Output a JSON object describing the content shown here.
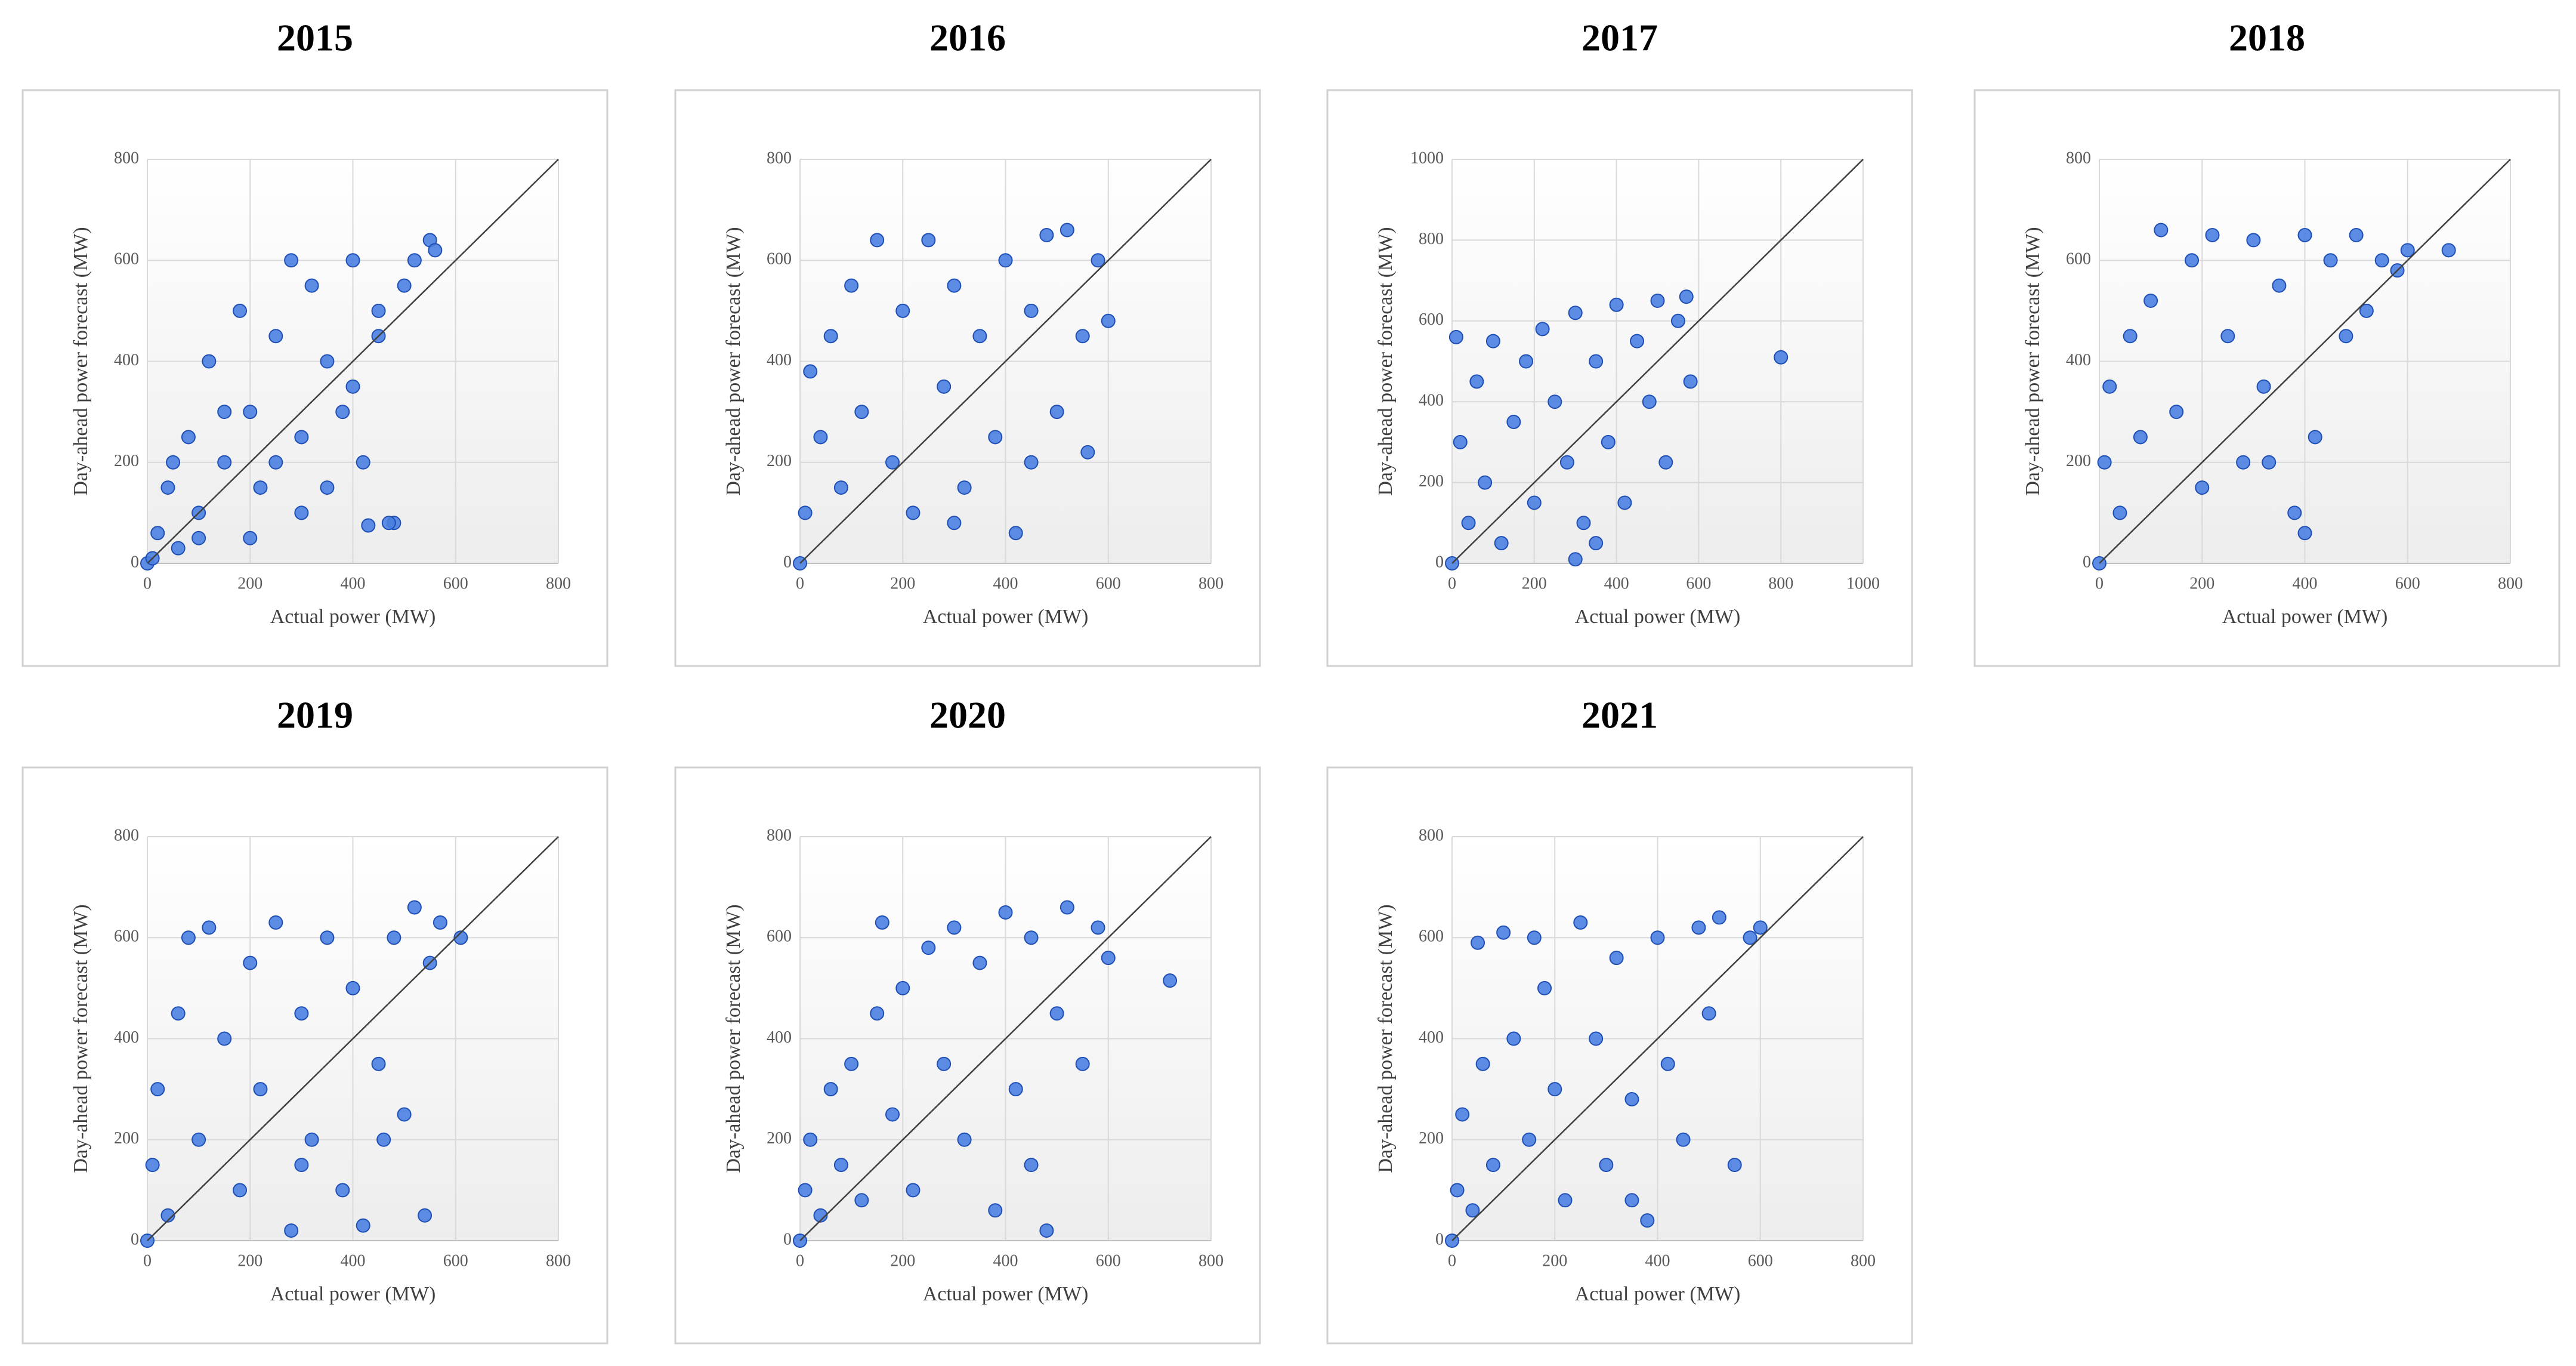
{
  "chart_data": [
    {
      "type": "scatter",
      "title": "2015",
      "x_label": "Actual power (MW)",
      "y_label": "Day-ahead power forecast (MW)",
      "color": "#4a7fe0",
      "grid": true,
      "identity_line": true,
      "xlim": [
        0,
        800
      ],
      "ylim": [
        0,
        800
      ],
      "xticks": [
        0,
        200,
        400,
        600,
        800
      ],
      "yticks": [
        0,
        200,
        400,
        600,
        800
      ],
      "x": [
        0,
        20,
        40,
        60,
        80,
        100,
        120,
        150,
        180,
        200,
        220,
        250,
        280,
        300,
        320,
        350,
        380,
        400,
        420,
        450,
        480,
        500,
        520,
        550,
        560,
        100,
        200,
        300,
        400,
        150,
        250,
        350,
        450,
        50,
        10,
        430,
        470
      ],
      "y": [
        0,
        60,
        150,
        30,
        250,
        100,
        400,
        200,
        500,
        300,
        150,
        450,
        600,
        250,
        550,
        400,
        300,
        600,
        200,
        500,
        80,
        550,
        600,
        640,
        620,
        50,
        50,
        100,
        350,
        300,
        200,
        150,
        450,
        200,
        10,
        75,
        80
      ]
    },
    {
      "type": "scatter",
      "title": "2016",
      "x_label": "Actual power (MW)",
      "y_label": "Day-ahead power forecast (MW)",
      "color": "#4a7fe0",
      "grid": true,
      "identity_line": true,
      "xlim": [
        0,
        800
      ],
      "ylim": [
        0,
        800
      ],
      "xticks": [
        0,
        200,
        400,
        600,
        800
      ],
      "yticks": [
        0,
        200,
        400,
        600,
        800
      ],
      "x": [
        0,
        10,
        20,
        40,
        60,
        80,
        100,
        120,
        150,
        180,
        200,
        220,
        250,
        280,
        300,
        320,
        350,
        380,
        400,
        420,
        450,
        480,
        500,
        520,
        550,
        580,
        600,
        300,
        450,
        560
      ],
      "y": [
        0,
        100,
        380,
        250,
        450,
        150,
        550,
        300,
        640,
        200,
        500,
        100,
        640,
        350,
        550,
        150,
        450,
        250,
        600,
        60,
        500,
        650,
        300,
        660,
        450,
        600,
        480,
        80,
        200,
        220
      ]
    },
    {
      "type": "scatter",
      "title": "2017",
      "x_label": "Actual power (MW)",
      "y_label": "Day-ahead power forecast (MW)",
      "color": "#4a7fe0",
      "grid": true,
      "identity_line": true,
      "xlim": [
        0,
        1000
      ],
      "ylim": [
        0,
        1000
      ],
      "xticks": [
        0,
        200,
        400,
        600,
        800,
        1000
      ],
      "yticks": [
        0,
        200,
        400,
        600,
        800,
        1000
      ],
      "x": [
        0,
        10,
        20,
        40,
        60,
        80,
        100,
        120,
        150,
        180,
        200,
        220,
        250,
        280,
        300,
        320,
        350,
        380,
        400,
        420,
        450,
        480,
        500,
        520,
        550,
        570,
        580,
        800,
        350,
        300
      ],
      "y": [
        0,
        560,
        300,
        100,
        450,
        200,
        550,
        50,
        350,
        500,
        150,
        580,
        400,
        250,
        620,
        100,
        500,
        300,
        640,
        150,
        550,
        400,
        650,
        250,
        600,
        660,
        450,
        510,
        50,
        10
      ]
    },
    {
      "type": "scatter",
      "title": "2018",
      "x_label": "Actual power (MW)",
      "y_label": "Day-ahead power forecast (MW)",
      "color": "#4a7fe0",
      "grid": true,
      "identity_line": true,
      "xlim": [
        0,
        800
      ],
      "ylim": [
        0,
        800
      ],
      "xticks": [
        0,
        200,
        400,
        600,
        800
      ],
      "yticks": [
        0,
        200,
        400,
        600,
        800
      ],
      "x": [
        0,
        10,
        20,
        40,
        60,
        80,
        100,
        120,
        150,
        180,
        200,
        220,
        250,
        280,
        300,
        320,
        350,
        380,
        400,
        420,
        450,
        480,
        500,
        520,
        550,
        580,
        600,
        680,
        400,
        330
      ],
      "y": [
        0,
        200,
        350,
        100,
        450,
        250,
        520,
        660,
        300,
        600,
        150,
        650,
        450,
        200,
        640,
        350,
        550,
        100,
        650,
        250,
        600,
        450,
        650,
        500,
        600,
        580,
        620,
        620,
        60,
        200
      ]
    },
    {
      "type": "scatter",
      "title": "2019",
      "x_label": "Actual power (MW)",
      "y_label": "Day-ahead power forecast (MW)",
      "color": "#4a7fe0",
      "grid": true,
      "identity_line": true,
      "xlim": [
        0,
        800
      ],
      "ylim": [
        0,
        800
      ],
      "xticks": [
        0,
        200,
        400,
        600,
        800
      ],
      "yticks": [
        0,
        200,
        400,
        600,
        800
      ],
      "x": [
        0,
        10,
        20,
        40,
        60,
        80,
        100,
        120,
        150,
        180,
        200,
        220,
        250,
        280,
        300,
        320,
        350,
        380,
        400,
        420,
        450,
        480,
        500,
        520,
        540,
        550,
        570,
        610,
        300,
        460
      ],
      "y": [
        0,
        150,
        300,
        50,
        450,
        600,
        200,
        620,
        400,
        100,
        550,
        300,
        630,
        20,
        450,
        200,
        600,
        100,
        500,
        30,
        350,
        600,
        250,
        660,
        50,
        550,
        630,
        600,
        150,
        200
      ]
    },
    {
      "type": "scatter",
      "title": "2020",
      "x_label": "Actual power (MW)",
      "y_label": "Day-ahead power forecast (MW)",
      "color": "#4a7fe0",
      "grid": true,
      "identity_line": true,
      "xlim": [
        0,
        800
      ],
      "ylim": [
        0,
        800
      ],
      "xticks": [
        0,
        200,
        400,
        600,
        800
      ],
      "yticks": [
        0,
        200,
        400,
        600,
        800
      ],
      "x": [
        0,
        10,
        20,
        40,
        60,
        80,
        100,
        120,
        150,
        160,
        180,
        200,
        220,
        250,
        280,
        300,
        320,
        350,
        380,
        400,
        420,
        450,
        480,
        500,
        520,
        550,
        580,
        600,
        720,
        450
      ],
      "y": [
        0,
        100,
        200,
        50,
        300,
        150,
        350,
        80,
        450,
        630,
        250,
        500,
        100,
        580,
        350,
        620,
        200,
        550,
        60,
        650,
        300,
        600,
        20,
        450,
        660,
        350,
        620,
        560,
        515,
        150
      ]
    },
    {
      "type": "scatter",
      "title": "2021",
      "x_label": "Actual power (MW)",
      "y_label": "Day-ahead power forecast (MW)",
      "color": "#4a7fe0",
      "grid": true,
      "identity_line": true,
      "xlim": [
        0,
        800
      ],
      "ylim": [
        0,
        800
      ],
      "xticks": [
        0,
        200,
        400,
        600,
        800
      ],
      "yticks": [
        0,
        200,
        400,
        600,
        800
      ],
      "x": [
        0,
        10,
        20,
        40,
        50,
        60,
        80,
        100,
        120,
        150,
        160,
        180,
        200,
        220,
        250,
        280,
        300,
        320,
        350,
        380,
        400,
        420,
        450,
        480,
        500,
        520,
        550,
        580,
        600,
        350
      ],
      "y": [
        0,
        100,
        250,
        60,
        590,
        350,
        150,
        610,
        400,
        200,
        600,
        500,
        300,
        80,
        630,
        400,
        150,
        560,
        280,
        40,
        600,
        350,
        200,
        620,
        450,
        640,
        150,
        600,
        620,
        80
      ]
    }
  ]
}
